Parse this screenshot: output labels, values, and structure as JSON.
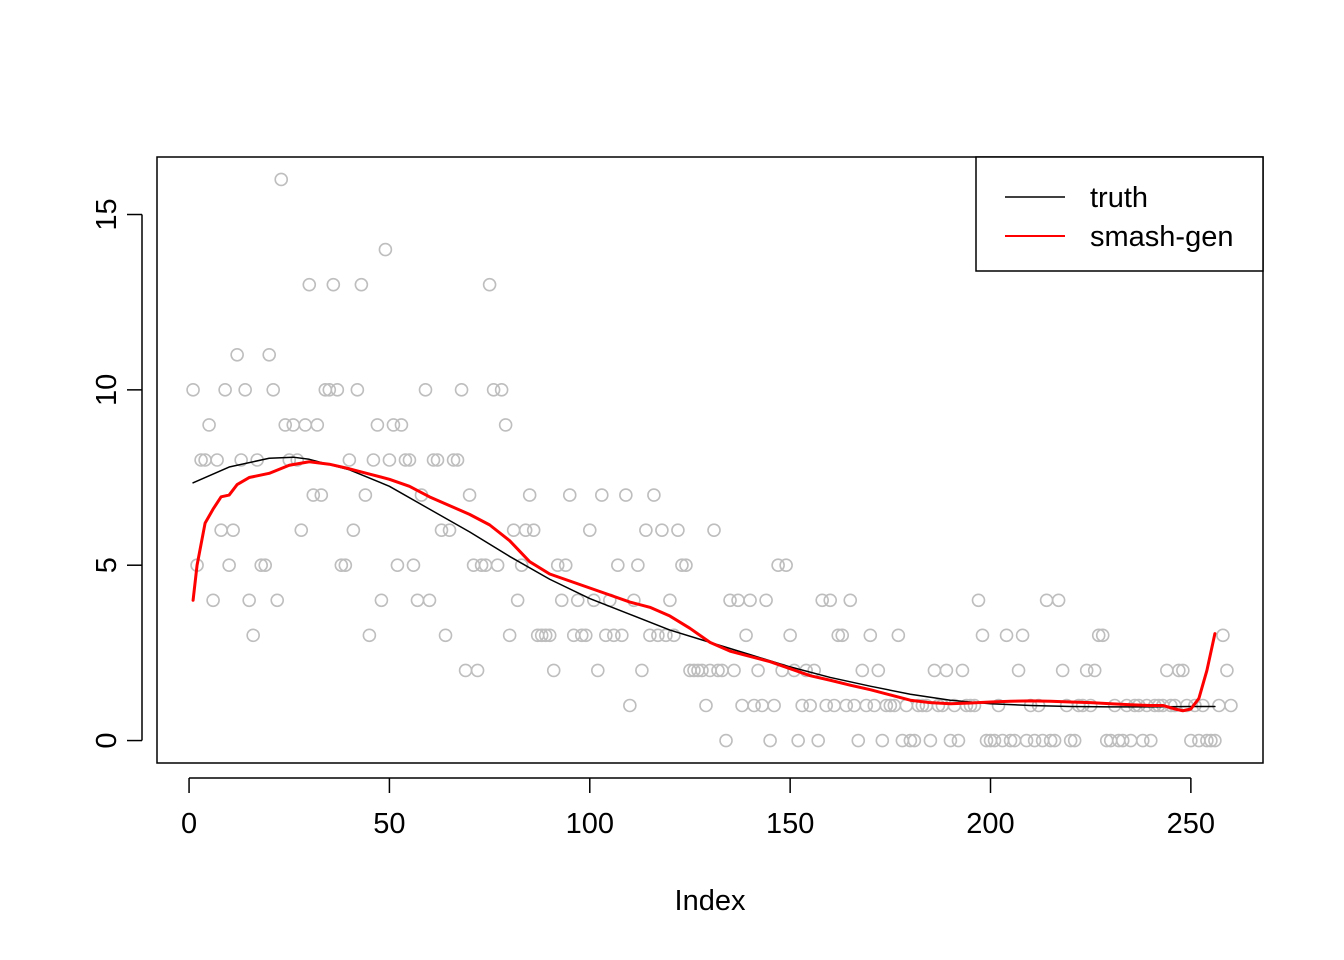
{
  "chart_data": {
    "type": "scatter",
    "title": "",
    "xlabel": "Index",
    "ylabel": "",
    "xlim": [
      -8,
      268
    ],
    "ylim": [
      -0.64,
      16.64
    ],
    "x_ticks": [
      0,
      50,
      100,
      150,
      200,
      250
    ],
    "y_ticks": [
      0,
      5,
      10,
      15
    ],
    "grid": false,
    "legend": {
      "position": "top-right",
      "entries": [
        {
          "label": "truth",
          "color": "#000000"
        },
        {
          "label": "smash-gen",
          "color": "#ff0000"
        }
      ]
    },
    "points": {
      "color": "#bebebe",
      "y": [
        10,
        5,
        8,
        8,
        9,
        4,
        8,
        6,
        10,
        5,
        6,
        11,
        8,
        10,
        4,
        3,
        8,
        5,
        5,
        11,
        10,
        4,
        16,
        9,
        8,
        9,
        8,
        6,
        9,
        13,
        7,
        9,
        7,
        10,
        10,
        13,
        10,
        5,
        5,
        8,
        6,
        10,
        13,
        7,
        3,
        8,
        9,
        4,
        14,
        8,
        9,
        5,
        9,
        8,
        8,
        5,
        4,
        7,
        10,
        4,
        8,
        8,
        6,
        3,
        6,
        8,
        8,
        10,
        2,
        7,
        5,
        2,
        5,
        5,
        13,
        10,
        5,
        10,
        9,
        3,
        6,
        4,
        5,
        6,
        7,
        6,
        3,
        3,
        3,
        3,
        2,
        5,
        4,
        5,
        7,
        3,
        4,
        3,
        3,
        6,
        4,
        2,
        7,
        3,
        4,
        3,
        5,
        3,
        7,
        1,
        4,
        5,
        2,
        6,
        3,
        7,
        3,
        6,
        3,
        4,
        3,
        6,
        5,
        5,
        2,
        2,
        2,
        2,
        1,
        2,
        6,
        2,
        2,
        0,
        4,
        2,
        4,
        1,
        3,
        4,
        1,
        2,
        1,
        4,
        0,
        1,
        5,
        2,
        5,
        3,
        2,
        0,
        1,
        2,
        1,
        2,
        0,
        4,
        1,
        4,
        1,
        3,
        3,
        1,
        4,
        1,
        0,
        2,
        1,
        3,
        1,
        2,
        0,
        1,
        1,
        1,
        3,
        0,
        1,
        0,
        0,
        1,
        1,
        1,
        0,
        2,
        1,
        1,
        2,
        0,
        1,
        0,
        2,
        1,
        1,
        1,
        4,
        3,
        0,
        0,
        0,
        1,
        0,
        3,
        0,
        0,
        2,
        3,
        0,
        1,
        0,
        1,
        0,
        4,
        0,
        0,
        4,
        2,
        1,
        0,
        0,
        1,
        1,
        2,
        1,
        2,
        3,
        3,
        0,
        0,
        1,
        0,
        0,
        1,
        0,
        1,
        1,
        0,
        1,
        0,
        1,
        1,
        1,
        2,
        1,
        1,
        2,
        2,
        1,
        0,
        1,
        0,
        1,
        0,
        0,
        0,
        1,
        3,
        2,
        1
      ]
    },
    "series": [
      {
        "name": "truth",
        "color": "#000000",
        "x": [
          1,
          10,
          20,
          26,
          30,
          40,
          50,
          60,
          70,
          80,
          90,
          100,
          110,
          120,
          130,
          140,
          150,
          160,
          170,
          180,
          190,
          200,
          210,
          220,
          230,
          240,
          250,
          256
        ],
        "y": [
          7.35,
          7.8,
          8.05,
          8.08,
          8.02,
          7.72,
          7.25,
          6.6,
          5.95,
          5.25,
          4.6,
          4.05,
          3.6,
          3.15,
          2.8,
          2.45,
          2.1,
          1.8,
          1.55,
          1.32,
          1.15,
          1.05,
          1.0,
          0.97,
          0.96,
          0.96,
          0.97,
          0.97
        ]
      },
      {
        "name": "smash-gen",
        "color": "#ff0000",
        "x": [
          1,
          2,
          4,
          6,
          8,
          10,
          12,
          15,
          20,
          25,
          30,
          35,
          40,
          45,
          50,
          55,
          60,
          65,
          70,
          75,
          80,
          85,
          90,
          95,
          100,
          105,
          110,
          115,
          120,
          125,
          130,
          135,
          140,
          145,
          150,
          155,
          160,
          165,
          170,
          175,
          180,
          185,
          190,
          195,
          200,
          205,
          210,
          215,
          220,
          225,
          230,
          235,
          240,
          243,
          246,
          248,
          250,
          252,
          254,
          256
        ],
        "y": [
          4.0,
          5.0,
          6.2,
          6.6,
          6.95,
          7.0,
          7.3,
          7.5,
          7.62,
          7.85,
          7.95,
          7.88,
          7.75,
          7.6,
          7.45,
          7.25,
          6.95,
          6.7,
          6.45,
          6.15,
          5.7,
          5.1,
          4.75,
          4.55,
          4.35,
          4.15,
          3.95,
          3.8,
          3.55,
          3.2,
          2.8,
          2.55,
          2.4,
          2.25,
          2.05,
          1.85,
          1.72,
          1.58,
          1.45,
          1.3,
          1.15,
          1.08,
          1.05,
          1.07,
          1.1,
          1.12,
          1.13,
          1.12,
          1.1,
          1.08,
          1.05,
          1.02,
          1.0,
          1.0,
          0.9,
          0.85,
          0.9,
          1.2,
          2.0,
          3.05
        ]
      }
    ]
  }
}
